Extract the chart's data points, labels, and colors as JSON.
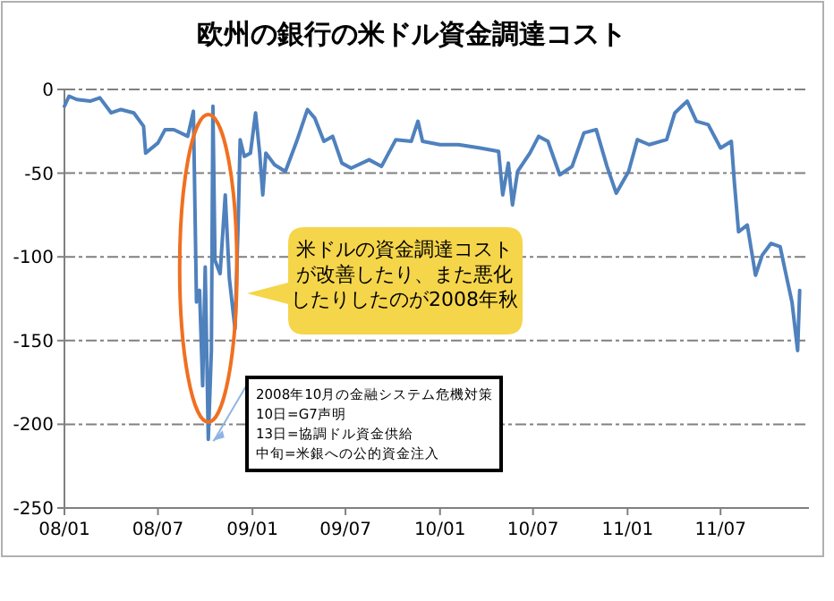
{
  "chart_data": {
    "type": "line",
    "title": "欧州の銀行の米ドル資金調達コスト",
    "x": [
      "2008-01-01",
      "2008-01-10",
      "2008-01-25",
      "2008-02-20",
      "2008-03-10",
      "2008-04-01",
      "2008-04-20",
      "2008-05-15",
      "2008-06-03",
      "2008-06-07",
      "2008-07-01",
      "2008-07-15",
      "2008-08-01",
      "2008-08-28",
      "2008-09-08",
      "2008-09-14",
      "2008-09-20",
      "2008-09-26",
      "2008-10-01",
      "2008-10-07",
      "2008-10-13",
      "2008-10-16",
      "2008-10-20",
      "2008-10-30",
      "2008-11-09",
      "2008-11-17",
      "2008-11-28",
      "2008-12-04",
      "2008-12-08",
      "2008-12-16",
      "2008-12-28",
      "2009-01-07",
      "2009-01-15",
      "2009-01-21",
      "2009-01-27",
      "2009-02-13",
      "2009-03-06",
      "2009-03-28",
      "2009-04-18",
      "2009-05-02",
      "2009-05-20",
      "2009-06-06",
      "2009-06-24",
      "2009-07-12",
      "2009-08-16",
      "2009-09-09",
      "2009-10-07",
      "2009-11-06",
      "2009-11-19",
      "2009-11-28",
      "2010-01-01",
      "2010-02-06",
      "2010-03-20",
      "2010-04-25",
      "2010-05-03",
      "2010-05-14",
      "2010-05-22",
      "2010-06-01",
      "2010-06-25",
      "2010-07-12",
      "2010-07-30",
      "2010-08-22",
      "2010-09-15",
      "2010-10-08",
      "2010-11-01",
      "2010-11-22",
      "2010-12-10",
      "2011-01-03",
      "2011-01-20",
      "2011-02-12",
      "2011-03-18",
      "2011-04-03",
      "2011-04-27",
      "2011-05-15",
      "2011-06-07",
      "2011-07-01",
      "2011-07-22",
      "2011-07-28",
      "2011-08-05",
      "2011-08-22",
      "2011-09-07",
      "2011-09-20",
      "2011-10-07",
      "2011-10-25",
      "2011-11-05",
      "2011-11-17",
      "2011-11-28",
      "2011-12-02"
    ],
    "series": [
      {
        "color": "#4f81bd",
        "values": [
          -10,
          -4,
          -6,
          -7,
          -5,
          -14,
          -12,
          -14,
          -22,
          -38,
          -32,
          -24,
          -24,
          -28,
          -13,
          -127,
          -120,
          -177,
          -106,
          -209,
          -156,
          -10,
          -102,
          -110,
          -63,
          -113,
          -143,
          -81,
          -30,
          -40,
          -38,
          -14,
          -38,
          -63,
          -38,
          -45,
          -49,
          -31,
          -12,
          -17,
          -31,
          -28,
          -44,
          -47,
          -42,
          -46,
          -30,
          -31,
          -19,
          -31,
          -33,
          -33,
          -35,
          -37,
          -63,
          -44,
          -69,
          -49,
          -38,
          -28,
          -31,
          -51,
          -46,
          -26,
          -24,
          -46,
          -62,
          -49,
          -30,
          -33,
          -30,
          -14,
          -7,
          -19,
          -21,
          -35,
          -31,
          -56,
          -85,
          -81,
          -111,
          -99,
          -92,
          -94,
          -110,
          -127,
          -156,
          -120
        ]
      }
    ],
    "xlim": [
      "2008-01-01",
      "2011-12-20"
    ],
    "xticks": [
      {
        "value": "2008-01-01",
        "label": "08/01"
      },
      {
        "value": "2008-07-01",
        "label": "08/07"
      },
      {
        "value": "2009-01-01",
        "label": "09/01"
      },
      {
        "value": "2009-07-01",
        "label": "09/07"
      },
      {
        "value": "2010-01-01",
        "label": "10/01"
      },
      {
        "value": "2010-07-01",
        "label": "10/07"
      },
      {
        "value": "2011-01-01",
        "label": "11/01"
      },
      {
        "value": "2011-07-01",
        "label": "11/07"
      }
    ],
    "ylim": [
      -250,
      0
    ],
    "yticks": [
      0,
      -50,
      -100,
      -150,
      -200,
      -250
    ],
    "grid": "y",
    "line_style": "solid",
    "marker": "none",
    "annotations": [
      "米ドルの資金調達コストが改善したり、また悪化したりしたのが2008年秋",
      {
        "text": "2008年10月の金融システム危機対策",
        "x": "2008-10-07",
        "y": -209
      },
      "10日=G7声明",
      "13日=協調ドル資金供給",
      "中旬=米銀への公的資金注入"
    ]
  }
}
